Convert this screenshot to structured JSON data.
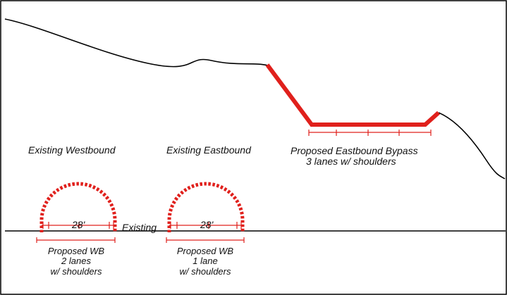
{
  "labels": {
    "existing_westbound": "Existing Westbound",
    "existing_eastbound": "Existing Eastbound",
    "proposed_bypass_line1": "Proposed Eastbound Bypass",
    "proposed_bypass_line2": "3 lanes w/ shoulders",
    "existing_ground": "Existing",
    "wb_tunnel_width": "28'",
    "eb_tunnel_width": "28'",
    "proposed_wb_2lane": {
      "line1": "Proposed WB",
      "line2": "2 lanes",
      "line3": "w/ shoulders"
    },
    "proposed_wb_1lane": {
      "line1": "Proposed WB",
      "line2": "1 lane",
      "line3": "w/ shoulders"
    }
  },
  "colors": {
    "proposed": "#e0201c",
    "existing": "#000000",
    "frame": "#000000",
    "background": "#ffffff"
  }
}
